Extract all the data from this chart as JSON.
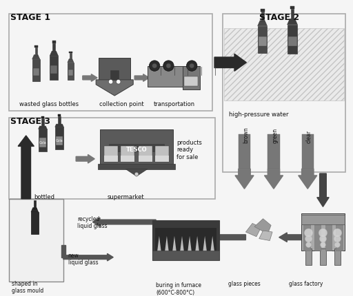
{
  "bg_color": "#f5f5f5",
  "stage1_label": "STAGE 1",
  "stage2_label": "STAGE 2",
  "stage3_label": "STAGE 3",
  "s1_items": [
    "wasted glass bottles",
    "collection point",
    "transportation"
  ],
  "s2_label": "high-pressure water",
  "s2_colors": [
    "brown",
    "green",
    "clear"
  ],
  "s3_top": [
    "bottled",
    "supermarket",
    "products\nready\nfor sale"
  ],
  "s3_bot": [
    "shaped in\nglass mould",
    "new\nliquid glass",
    "recycled\nliquid glass",
    "buring in furnace\n(600°C-800°C)",
    "glass pieces",
    "glass factory"
  ],
  "c_dark": "#3a3a3a",
  "c_mid": "#666666",
  "c_light": "#999999",
  "c_lighter": "#bbbbbb",
  "c_box": "#eeeeee",
  "c_arrow": "#555555"
}
